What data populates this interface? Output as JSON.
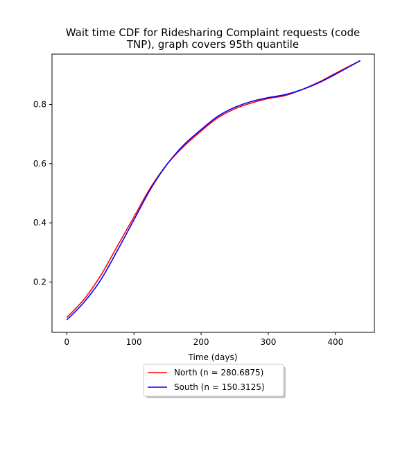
{
  "chart_data": {
    "type": "line",
    "title_lines": [
      "Wait time CDF for Ridesharing Complaint  requests (code",
      "TNP), graph covers 95th quantile"
    ],
    "xlabel": "Time (days)",
    "ylabel": "",
    "xlim": [
      -22,
      458
    ],
    "ylim": [
      0.03,
      0.97
    ],
    "xticks": [
      0,
      100,
      200,
      300,
      400
    ],
    "yticks": [
      0.2,
      0.4,
      0.6,
      0.8
    ],
    "xtick_labels": [
      "0",
      "100",
      "200",
      "300",
      "400"
    ],
    "ytick_labels": [
      "0.2",
      "0.4",
      "0.6",
      "0.8"
    ],
    "grid": false,
    "legend_position": "below plot, centered",
    "legend_labels": [
      "North (n = 280.6875)",
      "South (n = 150.3125)"
    ],
    "series": [
      {
        "name": "North (n = 280.6875)",
        "color": "#ff0000",
        "x": [
          0,
          25,
          50,
          75,
          100,
          125,
          150,
          175,
          200,
          225,
          250,
          275,
          300,
          325,
          350,
          375,
          400,
          437
        ],
        "y": [
          0.08,
          0.14,
          0.22,
          0.32,
          0.42,
          0.52,
          0.6,
          0.66,
          0.71,
          0.755,
          0.785,
          0.805,
          0.82,
          0.83,
          0.85,
          0.875,
          0.905,
          0.948
        ]
      },
      {
        "name": "South (n = 150.3125)",
        "color": "#0000ff",
        "x": [
          0,
          25,
          50,
          75,
          100,
          125,
          150,
          175,
          200,
          225,
          250,
          275,
          300,
          325,
          350,
          375,
          400,
          437
        ],
        "y": [
          0.072,
          0.13,
          0.205,
          0.305,
          0.41,
          0.515,
          0.6,
          0.665,
          0.715,
          0.76,
          0.79,
          0.81,
          0.823,
          0.833,
          0.85,
          0.873,
          0.902,
          0.948
        ]
      }
    ]
  }
}
